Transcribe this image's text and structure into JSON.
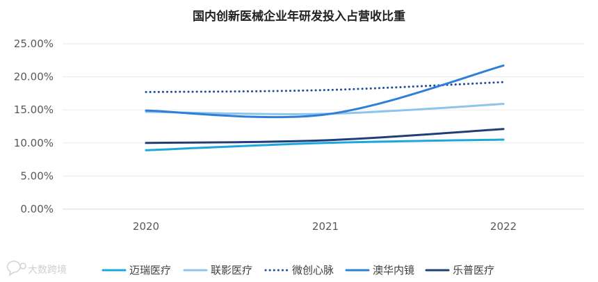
{
  "chart_data": {
    "type": "line",
    "title": "国内创新医械企业年研发投入占营收比重",
    "xlabel": "",
    "ylabel": "",
    "x": [
      "2020",
      "2021",
      "2022"
    ],
    "ylim": [
      0,
      25
    ],
    "yticks": [
      "0.00%",
      "5.00%",
      "10.00%",
      "15.00%",
      "20.00%",
      "25.00%"
    ],
    "grid": true,
    "legend_position": "bottom",
    "series": [
      {
        "name": "迈瑞医疗",
        "values": [
          8.9,
          10.0,
          10.5
        ],
        "color": "#1ca7dc",
        "dash": "solid"
      },
      {
        "name": "联影医疗",
        "values": [
          14.7,
          14.4,
          15.9
        ],
        "color": "#8dc4ec",
        "dash": "solid"
      },
      {
        "name": "微创心脉",
        "values": [
          17.7,
          18.0,
          19.2
        ],
        "color": "#1f4ea0",
        "dash": "dotted"
      },
      {
        "name": "澳华内镜",
        "values": [
          14.9,
          14.3,
          21.7
        ],
        "color": "#2e7fd9",
        "dash": "solid"
      },
      {
        "name": "乐普医疗",
        "values": [
          10.0,
          10.4,
          12.1
        ],
        "color": "#203f78",
        "dash": "solid"
      }
    ]
  },
  "watermark": {
    "text": "大数跨境",
    "icon": "chat-bubble-icon"
  }
}
